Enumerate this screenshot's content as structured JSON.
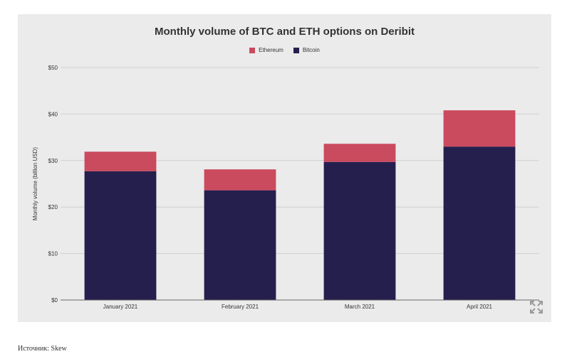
{
  "colors": {
    "ethereum": "#ca4a5e",
    "bitcoin": "#251f4e",
    "panel_bg": "#ebebeb",
    "grid": "#cfcfcf",
    "axis": "#666666"
  },
  "chart_data": {
    "type": "bar",
    "stacked": true,
    "title": "Monthly volume of BTC and ETH options on Deribit",
    "xlabel": "",
    "ylabel": "Monthly volume (billion USD)",
    "categories": [
      "January 2021",
      "February 2021",
      "March 2021",
      "April 2021"
    ],
    "series": [
      {
        "name": "Bitcoin",
        "values": [
          27.7,
          23.6,
          29.7,
          33.0
        ]
      },
      {
        "name": "Ethereum",
        "values": [
          4.2,
          4.5,
          3.9,
          7.8
        ]
      }
    ],
    "ylim": [
      0,
      50
    ],
    "yticks": [
      "$0",
      "$10",
      "$20",
      "$30",
      "$40",
      "$50"
    ],
    "ytick_values": [
      0,
      10,
      20,
      30,
      40,
      50
    ],
    "legend": {
      "placement": "top-center",
      "entries": [
        "Ethereum",
        "Bitcoin"
      ]
    },
    "grid": true
  },
  "icons": {
    "expand": "expand-icon"
  },
  "source": "Источник: Skew"
}
